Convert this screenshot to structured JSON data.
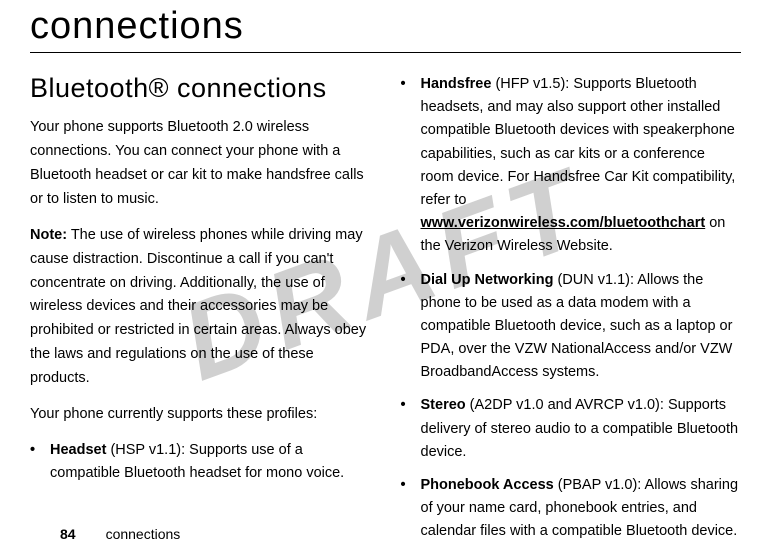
{
  "watermark": "DRAFT",
  "chapterTitle": "connections",
  "sectionTitle": "Bluetooth® connections",
  "leftCol": {
    "para1": "Your phone supports Bluetooth 2.0 wireless connections. You can connect your phone with a Bluetooth headset or car kit to make handsfree calls or to listen to music.",
    "noteLabel": "Note:",
    "noteText": " The use of wireless phones while driving may cause distraction. Discontinue a call if you can't concentrate on driving. Additionally, the use of wireless devices and their accessories may be prohibited or restricted in certain areas. Always obey the laws and regulations on the use of these products.",
    "para3": "Your phone currently supports these profiles:",
    "bullet1": {
      "bold": "Headset",
      "rest": " (HSP v1.1): Supports use of a compatible Bluetooth headset for mono voice."
    }
  },
  "rightCol": {
    "bullet1": {
      "bold": "Handsfree",
      "rest1": " (HFP v1.5): Supports Bluetooth headsets, and may also support other installed compatible Bluetooth devices with speakerphone capabilities, such as car kits or a conference room device. For Handsfree Car Kit compatibility, refer to ",
      "link": "www.verizonwireless.com/bluetoothchart",
      "rest2": " on the Verizon Wireless Website."
    },
    "bullet2": {
      "bold": "Dial Up Networking",
      "rest": " (DUN v1.1): Allows the phone to be used as a data modem with a compatible Bluetooth device, such as a laptop or PDA, over the VZW NationalAccess and/or VZW BroadbandAccess systems."
    },
    "bullet3": {
      "bold": "Stereo",
      "rest": " (A2DP v1.0 and AVRCP v1.0): Supports delivery of stereo audio to a compatible Bluetooth device."
    },
    "bullet4": {
      "bold": "Phonebook Access",
      "rest": " (PBAP v1.0): Allows sharing of your name card, phonebook entries, and calendar files with a compatible Bluetooth device."
    }
  },
  "footer": {
    "pageNum": "84",
    "section": "connections"
  }
}
